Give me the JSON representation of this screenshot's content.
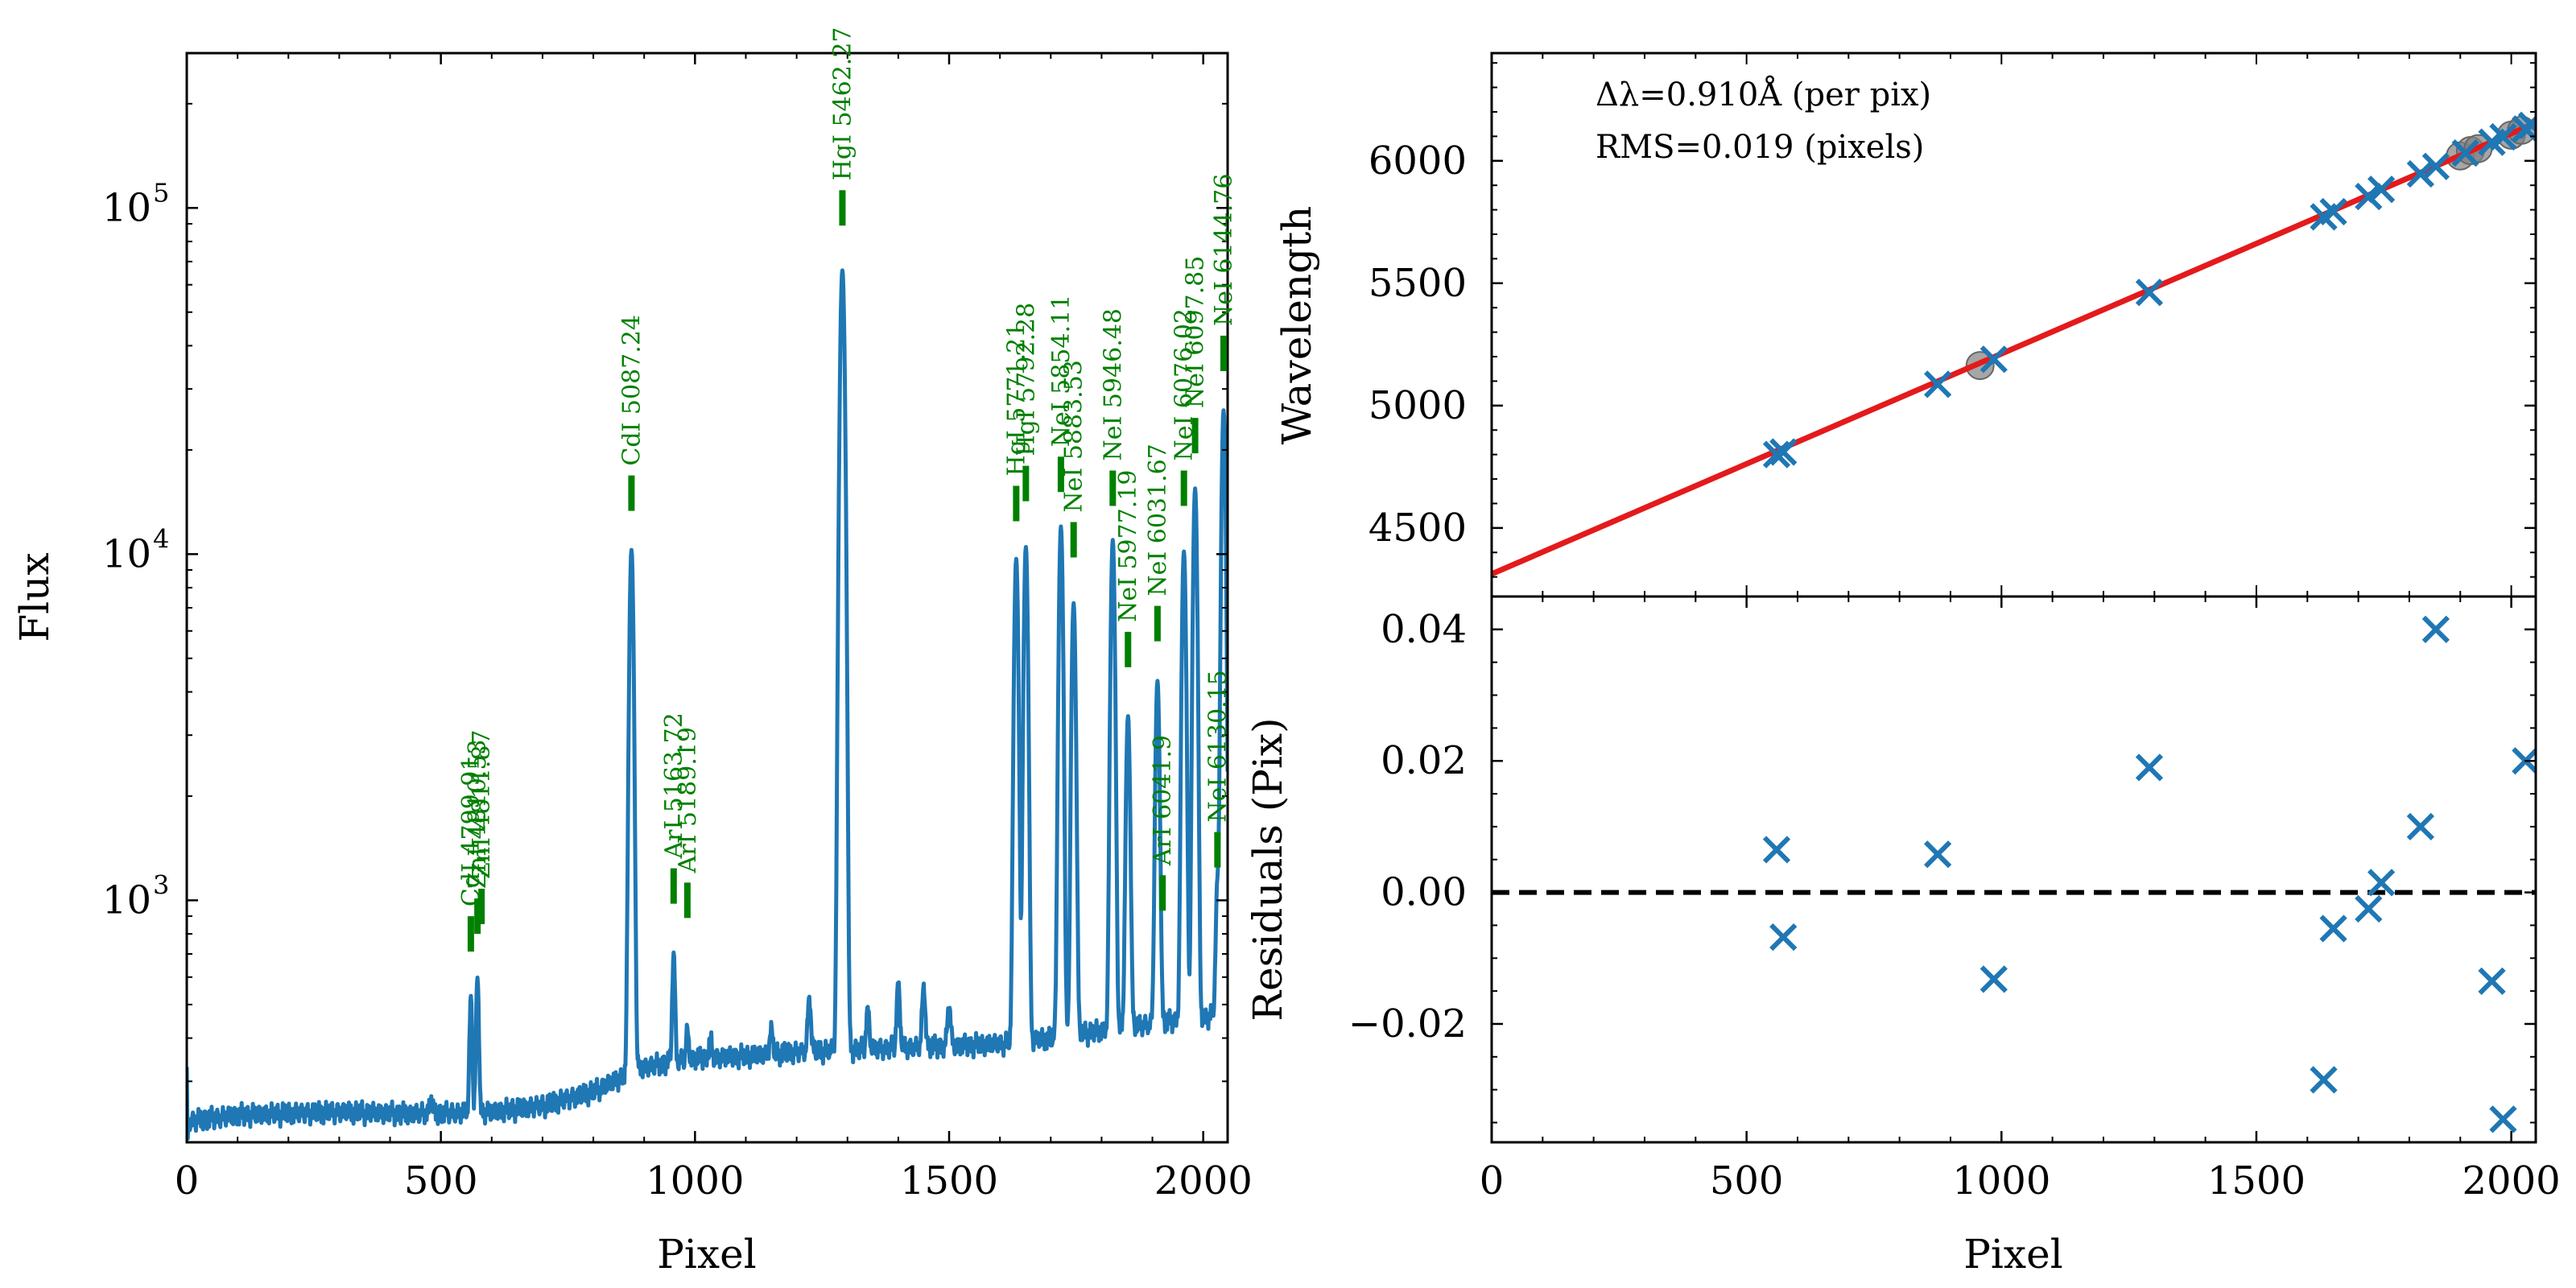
{
  "chart_data": [
    {
      "type": "line",
      "title": "",
      "xlabel": "Pixel",
      "ylabel": "Flux",
      "yscale": "log",
      "xlim": [
        0,
        2048
      ],
      "ylim": [
        200,
        280000
      ],
      "xticks": [
        0,
        500,
        1000,
        1500,
        2000
      ],
      "xtick_labels": [
        "0",
        "500",
        "1000",
        "1500",
        "2000"
      ],
      "yticks": [
        1000,
        10000,
        100000
      ],
      "ytick_labels": [
        "10",
        "10",
        "10"
      ],
      "ytick_exponents": [
        "3",
        "4",
        "5"
      ],
      "series_color": "#1f77b4",
      "marker_color": "#008000",
      "marker_alt_color": "#808080",
      "baseline": {
        "x": [
          0,
          100,
          300,
          450,
          600,
          700,
          800,
          900,
          1000,
          1100,
          1200,
          1300,
          1400,
          1500,
          1600,
          1700,
          1800,
          1900,
          2000,
          2048
        ],
        "y": [
          230,
          240,
          245,
          242,
          245,
          255,
          280,
          330,
          350,
          355,
          365,
          370,
          375,
          380,
          385,
          400,
          420,
          440,
          460,
          470
        ]
      },
      "peaks": [
        {
          "x": 480,
          "peak": 270,
          "w": 2.5
        },
        {
          "x": 559,
          "peak": 520,
          "w": 2.5
        },
        {
          "x": 572,
          "peak": 600,
          "w": 2.5
        },
        {
          "x": 875,
          "peak": 10300,
          "w": 3.5
        },
        {
          "x": 958,
          "peak": 700,
          "w": 2.5
        },
        {
          "x": 985,
          "peak": 420,
          "w": 2.5
        },
        {
          "x": 1030,
          "peak": 400,
          "w": 2.5
        },
        {
          "x": 1150,
          "peak": 420,
          "w": 3
        },
        {
          "x": 1225,
          "peak": 520,
          "w": 3
        },
        {
          "x": 1290,
          "peak": 66000,
          "w": 4
        },
        {
          "x": 1340,
          "peak": 480,
          "w": 3
        },
        {
          "x": 1400,
          "peak": 570,
          "w": 3
        },
        {
          "x": 1450,
          "peak": 560,
          "w": 3
        },
        {
          "x": 1500,
          "peak": 500,
          "w": 3
        },
        {
          "x": 1632,
          "peak": 9700,
          "w": 3.5
        },
        {
          "x": 1651,
          "peak": 10500,
          "w": 3.5
        },
        {
          "x": 1720,
          "peak": 12000,
          "w": 3.5
        },
        {
          "x": 1745,
          "peak": 7200,
          "w": 3.5
        },
        {
          "x": 1822,
          "peak": 11000,
          "w": 3.5
        },
        {
          "x": 1852,
          "peak": 3400,
          "w": 3.5
        },
        {
          "x": 1910,
          "peak": 4300,
          "w": 3.5
        },
        {
          "x": 1962,
          "peak": 10200,
          "w": 3.5
        },
        {
          "x": 1984,
          "peak": 15500,
          "w": 3.5
        },
        {
          "x": 2028,
          "peak": 1100,
          "w": 3
        },
        {
          "x": 2040,
          "peak": 26000,
          "w": 3.5
        }
      ],
      "line_ids": [
        {
          "label": "CdI 4799.91",
          "x": 559,
          "y": 800,
          "color": "green",
          "shown": "CdI 4799.9…"
        },
        {
          "label": "CdI 4799.91",
          "x": 559,
          "y": 800,
          "color": "green"
        },
        {
          "label": "ZnI 4810.53",
          "x": 572,
          "y": 900,
          "color": "green"
        },
        {
          "label": "ZnI 4811.87",
          "x": 580,
          "y": 960,
          "color": "green"
        },
        {
          "label": "CdI 5087.24",
          "x": 875,
          "y": 15000,
          "color": "green"
        },
        {
          "label": "ArI 5163.72",
          "x": 958,
          "y": 1100,
          "color": "green"
        },
        {
          "label": "ArI 5189.19",
          "x": 985,
          "y": 1000,
          "color": "green"
        },
        {
          "label": "HgI 5462.27",
          "x": 1290,
          "y": 100000,
          "color": "green"
        },
        {
          "label": "HgI 5771.21",
          "x": 1632,
          "y": 14000,
          "color": "green"
        },
        {
          "label": "HgI 5792.28",
          "x": 1651,
          "y": 16000,
          "color": "green"
        },
        {
          "label": "NeI 5854.11",
          "x": 1720,
          "y": 17000,
          "color": "green"
        },
        {
          "label": "NeI 5883.53",
          "x": 1745,
          "y": 11000,
          "color": "green"
        },
        {
          "label": "NeI 5946.48",
          "x": 1822,
          "y": 15500,
          "color": "green"
        },
        {
          "label": "NeI 5977.19",
          "x": 1852,
          "y": 5300,
          "color": "green"
        },
        {
          "label": "NeI 6031.67",
          "x": 1910,
          "y": 6300,
          "color": "green"
        },
        {
          "label": "ArI 6041.9",
          "x": 1920,
          "y": 1050,
          "color": "green"
        },
        {
          "label": "NeI 6076.02",
          "x": 1962,
          "y": 15500,
          "color": "green"
        },
        {
          "label": "NeI 6097.85",
          "x": 1984,
          "y": 22000,
          "color": "green"
        },
        {
          "label": "NeI 6130.15",
          "x": 2028,
          "y": 1400,
          "color": "green"
        },
        {
          "label": "NeI 6144.76",
          "x": 2040,
          "y": 38000,
          "color": "green"
        }
      ]
    },
    {
      "type": "scatter",
      "title": "",
      "xlabel": "",
      "ylabel": "Wavelength",
      "xlim": [
        0,
        2048
      ],
      "ylim": [
        4220,
        6440
      ],
      "yticks": [
        4500,
        5000,
        5500,
        6000
      ],
      "ytick_labels": [
        "4500",
        "5000",
        "5500",
        "6000"
      ],
      "annotations": [
        "Δλ=0.910Å (per pix)",
        "RMS=0.019 (pixels)"
      ],
      "fit": {
        "x": [
          0,
          2048
        ],
        "y": [
          4312,
          6155
        ],
        "color": "#e41a1c"
      },
      "points": {
        "x": [
          559,
          572,
          875,
          985,
          1290,
          1632,
          1651,
          1720,
          1745,
          1822,
          1852,
          1910,
          1962,
          1984,
          2028,
          2040
        ],
        "y": [
          4799.9,
          4810.5,
          5087.2,
          5189.2,
          5462.3,
          5771.2,
          5792.3,
          5854.1,
          5883.5,
          5946.5,
          5977.2,
          6031.7,
          6076.0,
          6097.9,
          6130.2,
          6144.8
        ],
        "color": "#1f77b4"
      },
      "rejected": {
        "x": [
          958,
          1900,
          1920,
          1935,
          2000,
          2020
        ],
        "y": [
          5163.7,
          6020,
          6041.9,
          6050,
          6105,
          6125
        ],
        "color": "#808080"
      }
    },
    {
      "type": "scatter",
      "title": "",
      "xlabel": "Pixel",
      "ylabel": "Residuals (Pix)",
      "xlim": [
        0,
        2048
      ],
      "ylim": [
        -0.038,
        0.045
      ],
      "xticks": [
        0,
        500,
        1000,
        1500,
        2000
      ],
      "xtick_labels": [
        "0",
        "500",
        "1000",
        "1500",
        "2000"
      ],
      "yticks": [
        -0.02,
        0.0,
        0.02,
        0.04
      ],
      "ytick_labels": [
        "−0.02",
        "0.00",
        "0.02",
        "0.04"
      ],
      "zero_line": 0,
      "points": {
        "x": [
          559,
          572,
          875,
          985,
          1290,
          1632,
          1651,
          1720,
          1745,
          1822,
          1852,
          1962,
          1984,
          2028
        ],
        "y": [
          0.0065,
          -0.0068,
          0.0058,
          -0.0132,
          0.019,
          -0.0285,
          -0.0055,
          -0.0025,
          0.0015,
          0.01,
          0.04,
          -0.0135,
          -0.0345,
          0.02
        ],
        "color": "#1f77b4"
      }
    }
  ]
}
